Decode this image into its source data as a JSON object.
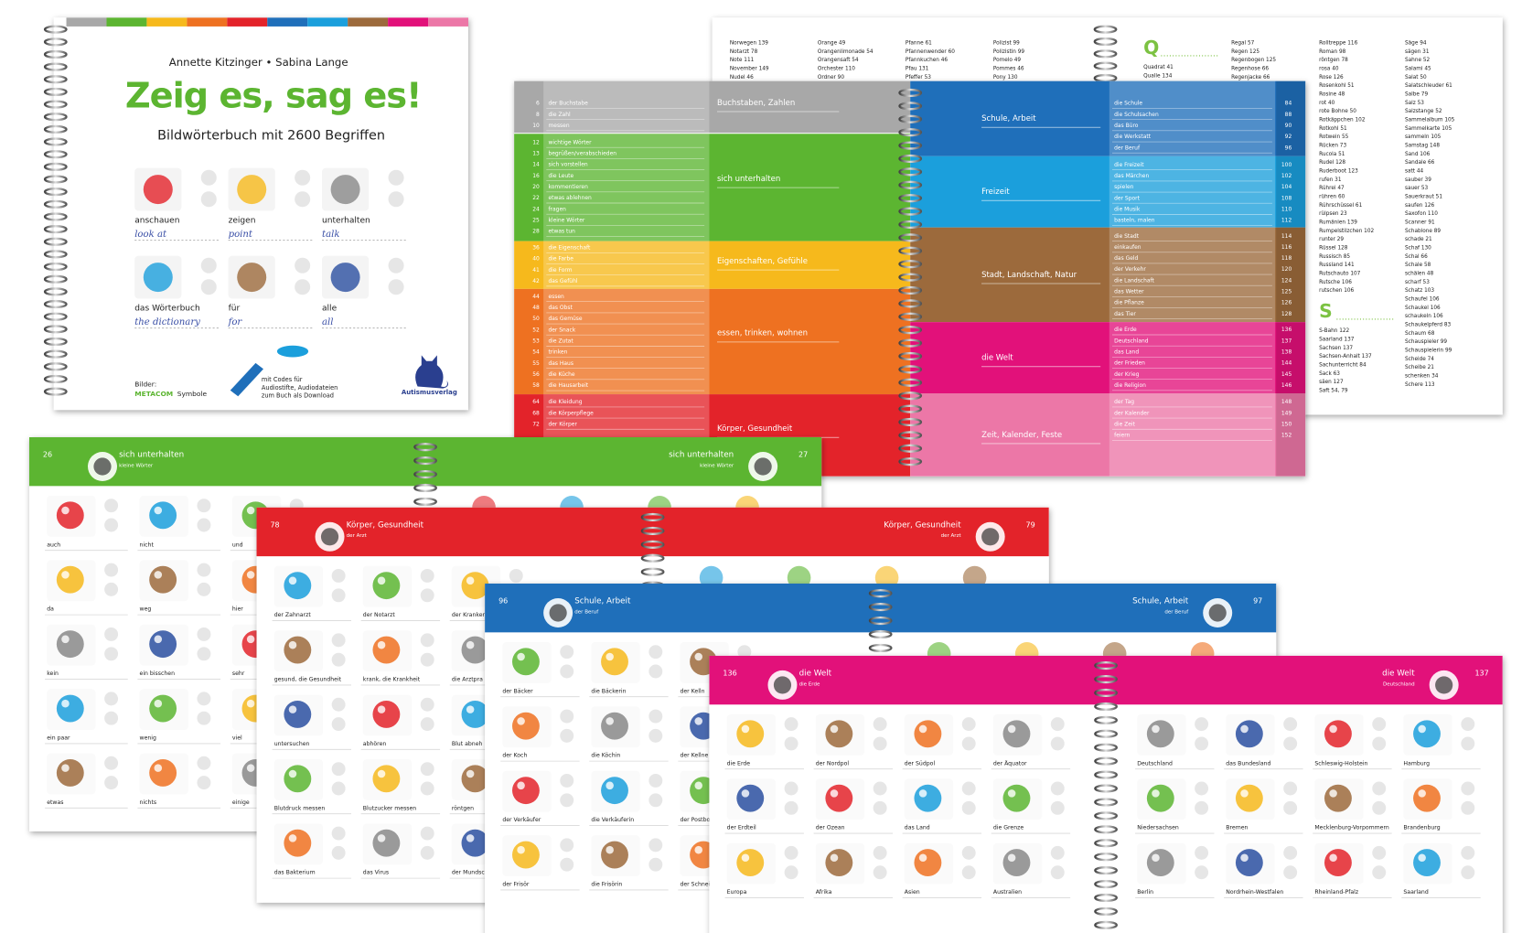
{
  "cover": {
    "authors": "Annette Kitzinger • Sabina Lange",
    "title": "Zeig es, sag es!",
    "subtitle": "Bildwörterbuch mit 2600 Begriffen",
    "words": [
      {
        "de": "anschauen",
        "en": "look at"
      },
      {
        "de": "zeigen",
        "en": "point"
      },
      {
        "de": "unterhalten",
        "en": "talk"
      },
      {
        "de": "das Wörterbuch",
        "en": "the dictionary"
      },
      {
        "de": "für",
        "en": "for"
      },
      {
        "de": "alle",
        "en": "all"
      }
    ],
    "credits": "Bilder:",
    "credits_brand": "METACOM",
    "credits_suffix": "Symbole",
    "codes_note": [
      "mit Codes für",
      "Audiostifte, Audiodateien",
      "zum Buch als Download"
    ],
    "publisher": "Autismusverlag"
  },
  "alphabet": [
    {
      "entries": [
        "Norwegen 139",
        "Notarzt 78",
        "Note 111",
        "November 149",
        "Nudel 46"
      ]
    },
    {
      "entries": [
        "Orange 49",
        "Orangenlimonade 54",
        "Orangensaft 54",
        "Orchester 110",
        "Ordner 90"
      ]
    },
    {
      "entries": [
        "Pfanne 61",
        "Pfannenwender 60",
        "Pfannkuchen 46",
        "Pfau 131",
        "Pfeffer 53"
      ]
    },
    {
      "entries": [
        "Polizist 99",
        "Polizistin 99",
        "Pomelo 49",
        "Pommes 46",
        "Pony 130"
      ]
    },
    {
      "letter": "Q",
      "entries": [
        "Quadrat 41",
        "Qualle 134"
      ]
    },
    {
      "entries": [
        "Regal 57",
        "Regen 125",
        "Regenbogen 125",
        "Regenhose 66",
        "Regenjacke 66"
      ]
    },
    {
      "entries": [
        "Rolltreppe 116",
        "Roman 98",
        "röntgen 78",
        "rosa 40",
        "Rose 126",
        "Rosenkohl 51",
        "Rosine 48",
        "rot 40",
        "rote Bohne 50",
        "Rotkäppchen 102",
        "Rotkohl 51",
        "Rotwein 55",
        "Rücken 73",
        "Rucola 51",
        "Rudel 128",
        "Ruderboot 123",
        "rufen 31",
        "Rührei 47",
        "rühren 60",
        "Rührschüssel 61",
        "rülpsen 23",
        "Rumänien 139",
        "Rumpelstilzchen 102",
        "runter 29",
        "Rüssel 128",
        "Russisch 85",
        "Russland 141",
        "Rutschauto 107",
        "Rutsche 106",
        "rutschen 106"
      ]
    },
    {
      "letter": "S",
      "entries": [
        "S-Bahn 122",
        "Saarland 137",
        "Sachsen 137",
        "Sachsen-Anhalt 137",
        "Sachunterricht 84",
        "Sack 63",
        "säen 127",
        "Saft 54, 79"
      ]
    },
    {
      "entries": [
        "Säge 94",
        "sägen 31",
        "Sahne 52",
        "Salami 45",
        "Salat 50",
        "Salatschleuder 61",
        "Salbe 79",
        "Salz 53",
        "Salzstange 52",
        "Sammelalbum 105",
        "Sammelkarte 105",
        "sammeln 105",
        "Samstag 148",
        "Sand 106",
        "Sandale 66",
        "satt 44",
        "sauber 39",
        "sauer 53",
        "Sauerkraut 51",
        "saufen 126",
        "Saxofon 110",
        "Scanner 91",
        "Schablone 89",
        "schade 21",
        "Schaf 130",
        "Schal 66",
        "Schale 58",
        "schälen 48",
        "scharf 53",
        "Schatz 103",
        "Schaufel 106",
        "Schaukel 106",
        "schaukeln 106",
        "Schaukelpferd 83",
        "Schaum 68",
        "Schauspieler 99",
        "Schauspielerin 99",
        "Scheide 74",
        "Scheibe 21",
        "schenken 34",
        "Schere 113"
      ]
    }
  ],
  "index": {
    "left_sections": [
      {
        "label": "Buchstaben, Zahlen",
        "color": "#a8a8a8",
        "entries": [
          {
            "page": 6,
            "word": "der Buchstabe"
          },
          {
            "page": 8,
            "word": "die Zahl"
          },
          {
            "page": 10,
            "word": "messen"
          }
        ]
      },
      {
        "label": "sich unterhalten",
        "color": "#5cb531",
        "entries": [
          {
            "page": 12,
            "word": "wichtige Wörter"
          },
          {
            "page": 13,
            "word": "begrüßen/verabschieden"
          },
          {
            "page": 14,
            "word": "sich vorstellen"
          },
          {
            "page": 16,
            "word": "die Leute"
          },
          {
            "page": 20,
            "word": "kommentieren"
          },
          {
            "page": 22,
            "word": "etwas ablehnen"
          },
          {
            "page": 24,
            "word": "fragen"
          },
          {
            "page": 25,
            "word": "kleine Wörter"
          },
          {
            "page": 28,
            "word": "etwas tun"
          }
        ]
      },
      {
        "label": "Eigenschaften, Gefühle",
        "color": "#f6b91c",
        "entries": [
          {
            "page": 36,
            "word": "die Eigenschaft"
          },
          {
            "page": 40,
            "word": "die Farbe"
          },
          {
            "page": 41,
            "word": "die Form"
          },
          {
            "page": 42,
            "word": "das Gefühl"
          }
        ]
      },
      {
        "label": "essen, trinken, wohnen",
        "color": "#ee7121",
        "entries": [
          {
            "page": 44,
            "word": "essen"
          },
          {
            "page": 48,
            "word": "das Obst"
          },
          {
            "page": 50,
            "word": "das Gemüse"
          },
          {
            "page": 52,
            "word": "der Snack"
          },
          {
            "page": 53,
            "word": "die Zutat"
          },
          {
            "page": 54,
            "word": "trinken"
          },
          {
            "page": 55,
            "word": "das Haus"
          },
          {
            "page": 56,
            "word": "die Küche"
          },
          {
            "page": 58,
            "word": "die Hausarbeit"
          }
        ]
      },
      {
        "label": "Körper, Gesundheit",
        "color": "#e3232a",
        "entries": [
          {
            "page": 64,
            "word": "die Kleidung"
          },
          {
            "page": 68,
            "word": "die Körperpflege"
          },
          {
            "page": 72,
            "word": "der Körper"
          }
        ]
      }
    ],
    "right_sections": [
      {
        "label": "Schule, Arbeit",
        "color": "#1f6fba",
        "entries": [
          {
            "page": 84,
            "word": "die Schule"
          },
          {
            "page": 88,
            "word": "die Schulsachen"
          },
          {
            "page": 90,
            "word": "das Büro"
          },
          {
            "page": 92,
            "word": "die Werkstatt"
          },
          {
            "page": 96,
            "word": "der Beruf"
          }
        ]
      },
      {
        "label": "Freizeit",
        "color": "#1b9fdc",
        "entries": [
          {
            "page": 100,
            "word": "die Freizeit"
          },
          {
            "page": 102,
            "word": "das Märchen"
          },
          {
            "page": 104,
            "word": "spielen"
          },
          {
            "page": 108,
            "word": "der Sport"
          },
          {
            "page": 110,
            "word": "die Musik"
          },
          {
            "page": 112,
            "word": "basteln, malen"
          }
        ]
      },
      {
        "label": "Stadt, Landschaft, Natur",
        "color": "#9c6a3c",
        "entries": [
          {
            "page": 114,
            "word": "die Stadt"
          },
          {
            "page": 116,
            "word": "einkaufen"
          },
          {
            "page": 118,
            "word": "das Geld"
          },
          {
            "page": 120,
            "word": "der Verkehr"
          },
          {
            "page": 124,
            "word": "die Landschaft"
          },
          {
            "page": 125,
            "word": "das Wetter"
          },
          {
            "page": 126,
            "word": "die Pflanze"
          },
          {
            "page": 128,
            "word": "das Tier"
          }
        ]
      },
      {
        "label": "die Welt",
        "color": "#e2117a",
        "entries": [
          {
            "page": 136,
            "word": "die Erde"
          },
          {
            "page": 137,
            "word": "Deutschland"
          },
          {
            "page": 138,
            "word": "das Land"
          },
          {
            "page": 144,
            "word": "der Frieden"
          },
          {
            "page": 145,
            "word": "der Krieg"
          },
          {
            "page": 146,
            "word": "die Religion"
          }
        ]
      },
      {
        "label": "Zeit, Kalender, Feste",
        "color": "#ec77a7",
        "entries": [
          {
            "page": 148,
            "word": "der Tag"
          },
          {
            "page": 149,
            "word": "der Kalender"
          },
          {
            "page": 150,
            "word": "die Zeit"
          },
          {
            "page": 152,
            "word": "feiern"
          }
        ]
      }
    ]
  },
  "spreads": [
    {
      "title": "sich unterhalten",
      "subtitle_left": "kleine Wörter",
      "subtitle_right": "kleine Wörter",
      "page_left": 26,
      "page_right": 27,
      "color": "#5cb531",
      "words_left": [
        "auch",
        "nicht",
        "und",
        "da",
        "weg",
        "hier",
        "kein",
        "ein bisschen",
        "sehr",
        "ein paar",
        "wenig",
        "viel",
        "etwas",
        "nichts",
        "einige"
      ],
      "words_right": []
    },
    {
      "title": "Körper, Gesundheit",
      "subtitle_left": "der Arzt",
      "subtitle_right": "der Arzt",
      "page_left": 78,
      "page_right": 79,
      "color": "#e3232a",
      "words_left": [
        "der Zahnarzt",
        "der Notarzt",
        "der Kranken",
        "gesund, die Gesundheit",
        "krank, die Krankheit",
        "die Arztpra",
        "untersuchen",
        "abhören",
        "Blut abneh",
        "Blutdruck messen",
        "Blutzucker messen",
        "röntgen",
        "das Bakterium",
        "das Virus",
        "der Mundsc"
      ],
      "words_right": []
    },
    {
      "title": "Schule, Arbeit",
      "subtitle_left": "der Beruf",
      "subtitle_right": "der Beruf",
      "page_left": 96,
      "page_right": 97,
      "color": "#1f6fba",
      "words_left": [
        "der Bäcker",
        "die Bäckerin",
        "der Kelln",
        "der Koch",
        "die Köchin",
        "der Kellne",
        "der Verkäufer",
        "die Verkäuferin",
        "der Postbo",
        "der Frisör",
        "die Frisörin",
        "der Schnei"
      ],
      "words_right": []
    },
    {
      "title": "die Welt",
      "subtitle_left": "die Erde",
      "subtitle_right": "Deutschland",
      "page_left": 136,
      "page_right": 137,
      "color": "#e2117a",
      "words_left": [
        "die Erde",
        "der Nordpol",
        "der Südpol",
        "der Äquator",
        "der Erdteil",
        "der Ozean",
        "das Land",
        "die Grenze",
        "Europa",
        "Afrika",
        "Asien",
        "Australien"
      ],
      "words_right": [
        "Deutschland",
        "das Bundesland",
        "Schleswig-Holstein",
        "Hamburg",
        "Niedersachsen",
        "Bremen",
        "Mecklenburg-Vorpommern",
        "Brandenburg",
        "Berlin",
        "Nordrhein-Westfalen",
        "Rheinland-Pfalz",
        "Saarland"
      ]
    }
  ]
}
